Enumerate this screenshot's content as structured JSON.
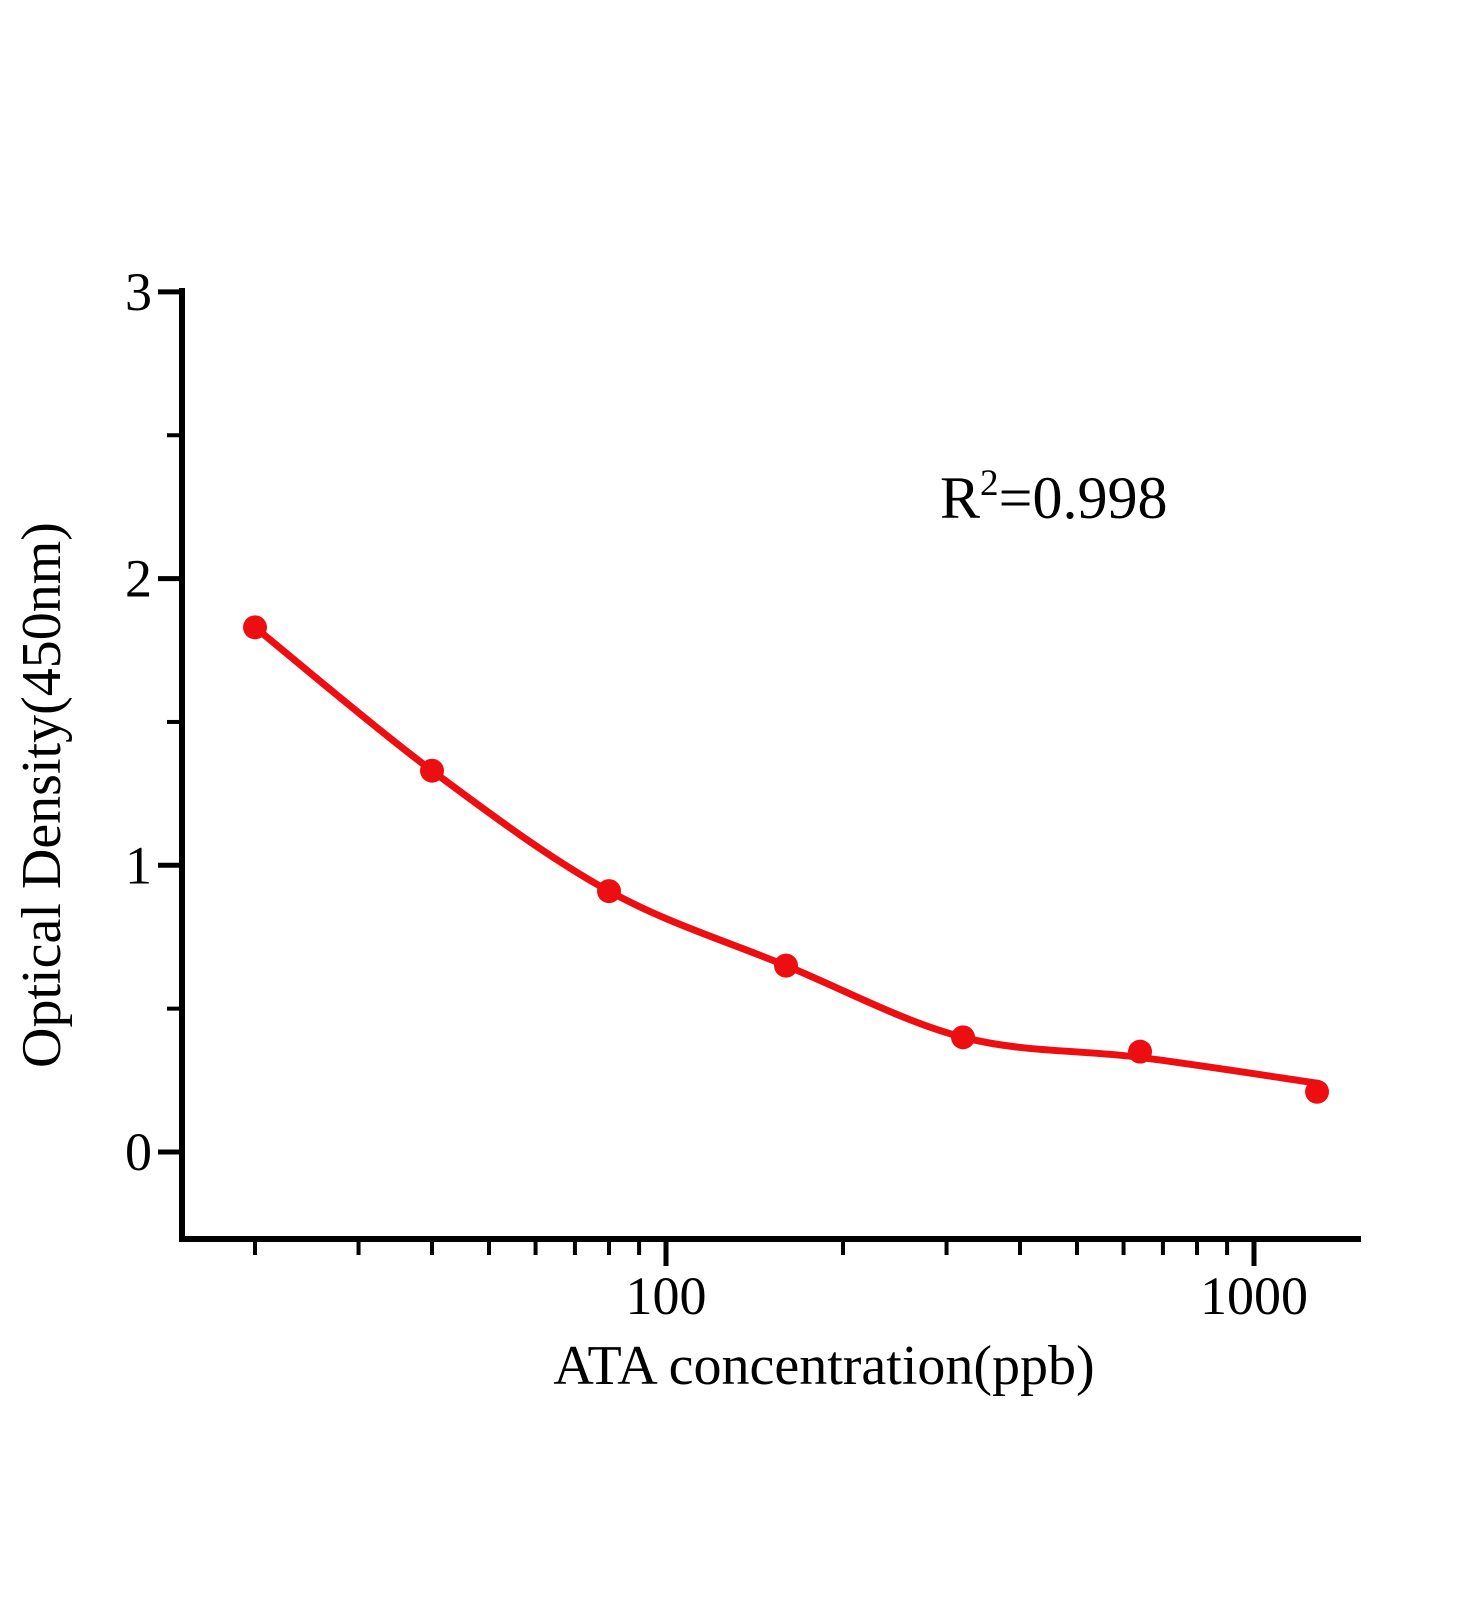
{
  "figure": {
    "background_color": "#ffffff",
    "text_color": "#000000"
  },
  "chart_data": {
    "type": "scatter",
    "title": "",
    "xlabel": "ATA concentration(ppb)",
    "ylabel": "Optical Density(450nm)",
    "annotation": "R²=0.998",
    "annotation_parts": {
      "base": "R",
      "sup": "2",
      "rest": "=0.998"
    },
    "x_scale": "log",
    "grid": false,
    "legend": "none",
    "x": [
      20,
      40,
      80,
      160,
      320,
      640,
      1280
    ],
    "y": [
      1.83,
      1.33,
      0.91,
      0.65,
      0.4,
      0.35,
      0.21
    ],
    "fit_curve": {
      "x": [
        20,
        40,
        80,
        160,
        320,
        640,
        1280
      ],
      "y": [
        1.83,
        1.33,
        0.91,
        0.65,
        0.4,
        0.33,
        0.24
      ]
    },
    "xlim": [
      15,
      1520
    ],
    "ylim": [
      -0.3,
      3
    ],
    "x_major_ticks": [
      100,
      1000
    ],
    "x_major_tick_labels": [
      "100",
      "1000"
    ],
    "x_minor_ticks": [
      20,
      30,
      40,
      50,
      60,
      70,
      80,
      90,
      200,
      300,
      400,
      500,
      600,
      700,
      800,
      900
    ],
    "y_major_ticks": [
      0,
      1,
      2,
      3
    ],
    "y_major_tick_labels": [
      "0",
      "1",
      "2",
      "3"
    ],
    "y_minor_ticks": [
      0.5,
      1.5,
      2.5
    ],
    "colors": {
      "marker": "#ed0e11",
      "line": "#ed0e11",
      "axis": "#000000",
      "background": "#ffffff"
    }
  }
}
